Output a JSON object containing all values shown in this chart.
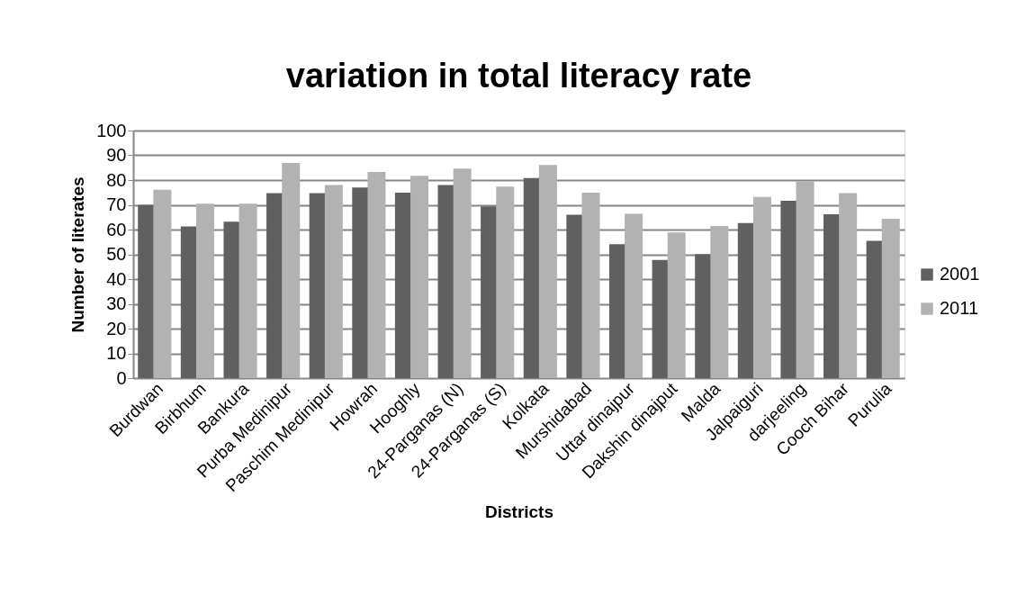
{
  "chart_data": {
    "type": "bar",
    "title": "variation in total literacy rate",
    "xlabel": "Districts",
    "ylabel": "Number of literates",
    "categories": [
      "Burdwan",
      "Birbhum",
      "Bankura",
      "Purba Medinipur",
      "Paschim Medinipur",
      "Howrah",
      "Hooghly",
      "24-Parganas (N)",
      "24-Parganas (S)",
      "Kolkata",
      "Murshidabad",
      "Uttar dinajpur",
      "Dakshin dinajput",
      "Malda",
      "Jalpaiguri",
      "darjeeling",
      "Cooch Bihar",
      "Purulia"
    ],
    "series": [
      {
        "name": "2001",
        "color": "#606060",
        "values": [
          70.0,
          61.3,
          63.2,
          74.7,
          74.7,
          77.0,
          74.9,
          78.0,
          69.4,
          80.8,
          66.0,
          54.1,
          47.7,
          50.1,
          62.6,
          71.6,
          66.2,
          55.5
        ]
      },
      {
        "name": "2011",
        "color": "#b2b2b2",
        "values": [
          76.1,
          70.5,
          70.5,
          86.9,
          78.0,
          83.3,
          81.7,
          84.6,
          77.4,
          86.1,
          74.9,
          66.4,
          58.8,
          61.5,
          73.2,
          79.4,
          74.7,
          64.4
        ]
      }
    ],
    "ylim": [
      0,
      100
    ],
    "yticks": [
      0,
      10,
      20,
      30,
      40,
      50,
      60,
      70,
      80,
      90,
      100
    ],
    "grid": "y",
    "legend": "right"
  }
}
